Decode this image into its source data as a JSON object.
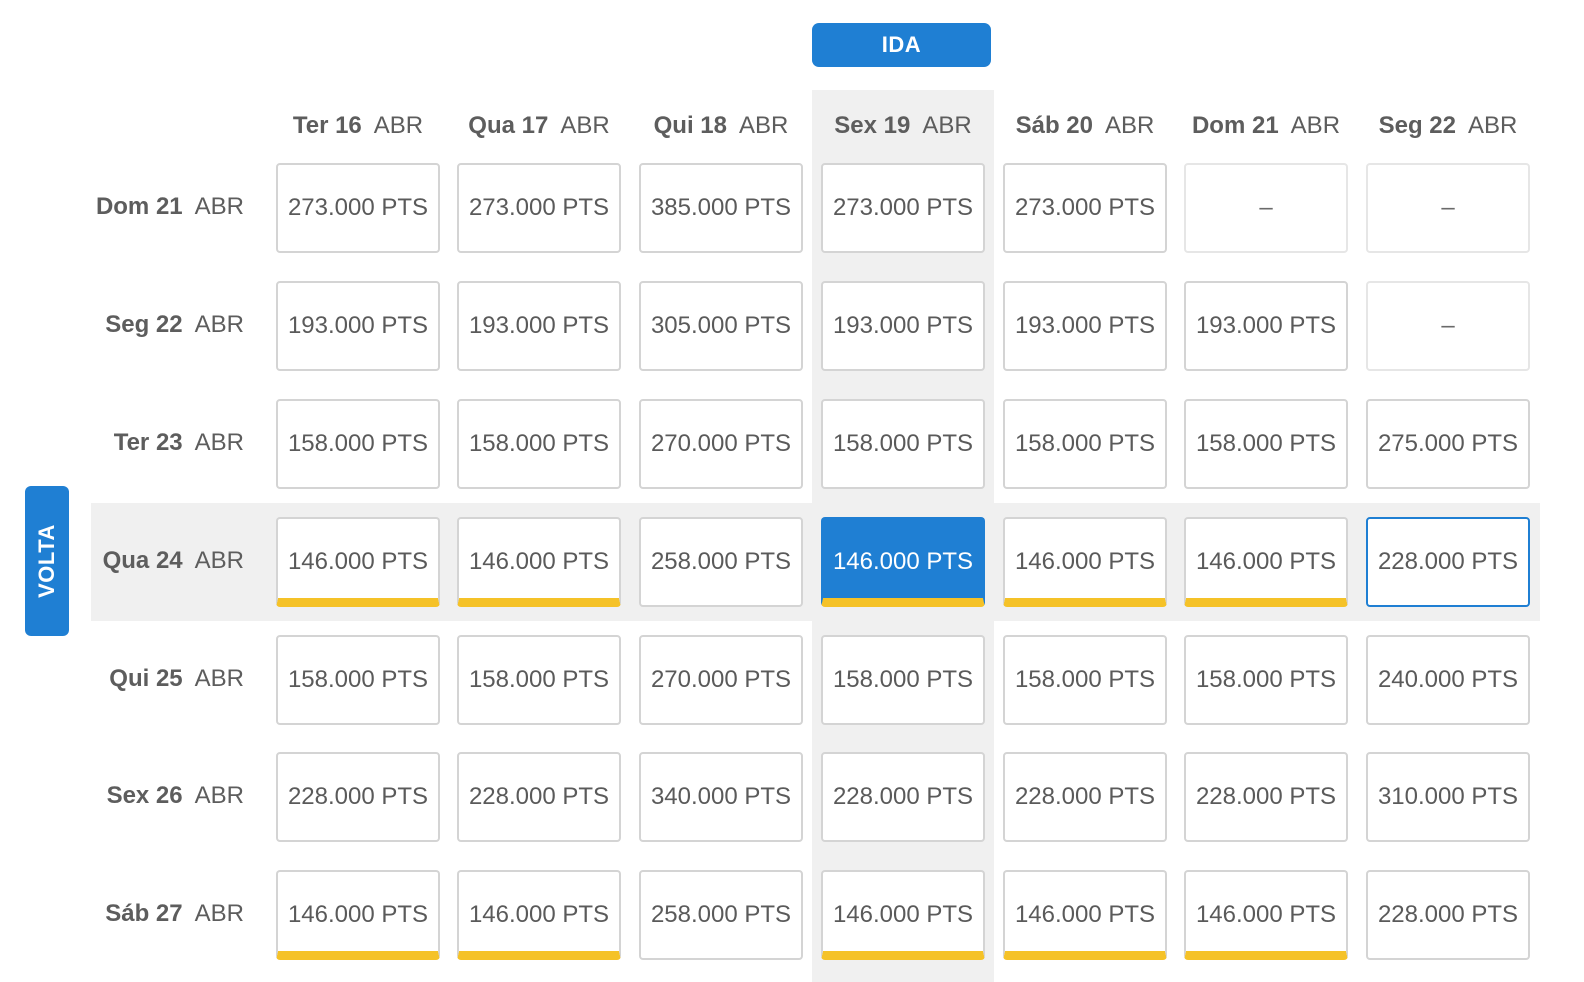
{
  "ida_label": "IDA",
  "volta_label": "VOLTA",
  "month": "ABR",
  "columns": [
    {
      "day": "Ter 16"
    },
    {
      "day": "Qua 17"
    },
    {
      "day": "Qui 18"
    },
    {
      "day": "Sex 19"
    },
    {
      "day": "Sáb 20"
    },
    {
      "day": "Dom 21"
    },
    {
      "day": "Seg 22"
    }
  ],
  "rows": [
    {
      "day": "Dom 21",
      "prices": [
        "273.000 PTS",
        "273.000 PTS",
        "385.000 PTS",
        "273.000 PTS",
        "273.000 PTS",
        "–",
        "–"
      ]
    },
    {
      "day": "Seg 22",
      "prices": [
        "193.000 PTS",
        "193.000 PTS",
        "305.000 PTS",
        "193.000 PTS",
        "193.000 PTS",
        "193.000 PTS",
        "–"
      ]
    },
    {
      "day": "Ter 23",
      "prices": [
        "158.000 PTS",
        "158.000 PTS",
        "270.000 PTS",
        "158.000 PTS",
        "158.000 PTS",
        "158.000 PTS",
        "275.000 PTS"
      ]
    },
    {
      "day": "Qua 24",
      "prices": [
        "146.000 PTS",
        "146.000 PTS",
        "258.000 PTS",
        "146.000 PTS",
        "146.000 PTS",
        "146.000 PTS",
        "228.000 PTS"
      ]
    },
    {
      "day": "Qui 25",
      "prices": [
        "158.000 PTS",
        "158.000 PTS",
        "270.000 PTS",
        "158.000 PTS",
        "158.000 PTS",
        "158.000 PTS",
        "240.000 PTS"
      ]
    },
    {
      "day": "Sex 26",
      "prices": [
        "228.000 PTS",
        "228.000 PTS",
        "340.000 PTS",
        "228.000 PTS",
        "228.000 PTS",
        "228.000 PTS",
        "310.000 PTS"
      ]
    },
    {
      "day": "Sáb 27",
      "prices": [
        "146.000 PTS",
        "146.000 PTS",
        "258.000 PTS",
        "146.000 PTS",
        "146.000 PTS",
        "146.000 PTS",
        "228.000 PTS"
      ]
    }
  ],
  "selected": {
    "row": 3,
    "col": 3
  },
  "focused": {
    "row": 3,
    "col": 6
  },
  "lowest_price_marked": "146.000 PTS",
  "colors": {
    "accent": "#1f7fd3",
    "lowest_marker": "#f5c228",
    "highlight_bg": "#f0f0f0"
  }
}
